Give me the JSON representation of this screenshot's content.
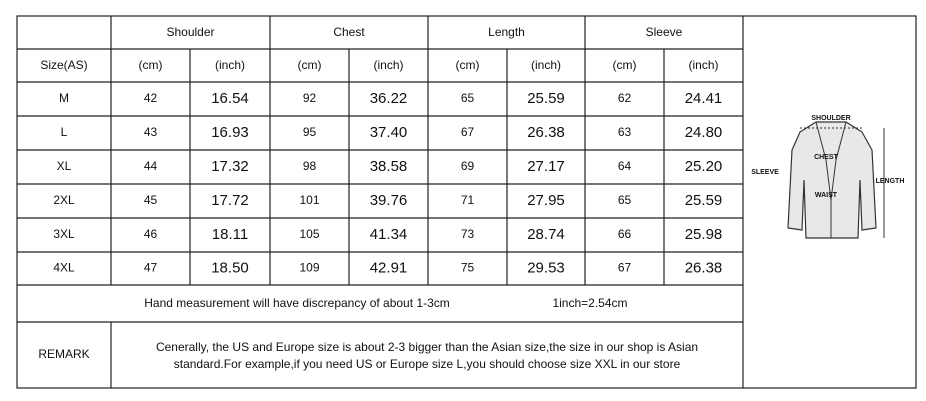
{
  "table": {
    "groups": [
      "Shoulder",
      "Chest",
      "Length",
      "Sleeve"
    ],
    "subheader": [
      "Size(AS)",
      "(cm)",
      "(inch)",
      "(cm)",
      "(inch)",
      "(cm)",
      "(inch)",
      "(cm)",
      "(inch)"
    ],
    "rows": [
      [
        "M",
        "42",
        "16.54",
        "92",
        "36.22",
        "65",
        "25.59",
        "62",
        "24.41"
      ],
      [
        "L",
        "43",
        "16.93",
        "95",
        "37.40",
        "67",
        "26.38",
        "63",
        "24.80"
      ],
      [
        "XL",
        "44",
        "17.32",
        "98",
        "38.58",
        "69",
        "27.17",
        "64",
        "25.20"
      ],
      [
        "2XL",
        "45",
        "17.72",
        "101",
        "39.76",
        "71",
        "27.95",
        "65",
        "25.59"
      ],
      [
        "3XL",
        "46",
        "18.11",
        "105",
        "41.34",
        "73",
        "28.74",
        "66",
        "25.98"
      ],
      [
        "4XL",
        "47",
        "18.50",
        "109",
        "42.91",
        "75",
        "29.53",
        "67",
        "26.38"
      ]
    ],
    "note": [
      "Hand measurement will have discrepancy of about 1-3cm",
      "1inch=2.54cm"
    ],
    "remark_label": "REMARK",
    "remark_lines": [
      "Cenerally, the US and Europe size is about 2-3 bigger than the Asian size,the size in our shop is Asian",
      "standard.For example,if you need US or Europe size L,you should choose size XXL in our store"
    ]
  },
  "figure": {
    "labels": [
      "SHOULDER",
      "CHEST",
      "WAIST",
      "SLEEVE",
      "LENGTH"
    ]
  }
}
